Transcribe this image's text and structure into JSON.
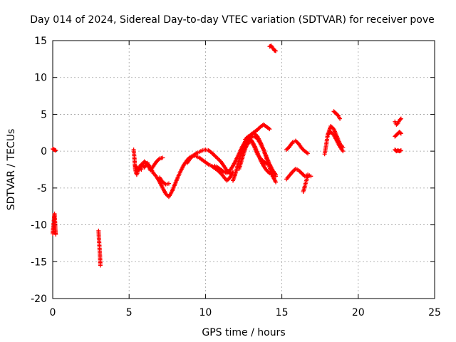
{
  "chart_data": {
    "type": "scatter",
    "title": "Day 014 of 2024, Sidereal Day-to-day VTEC variation (SDTVAR) for receiver pove",
    "xlabel": "GPS time / hours",
    "ylabel": "SDTVAR / TECUs",
    "xlim": [
      0,
      25
    ],
    "ylim": [
      -20,
      15
    ],
    "xticks": [
      0,
      5,
      10,
      15,
      20,
      25
    ],
    "yticks": [
      15,
      10,
      5,
      0,
      -5,
      -10,
      -15,
      -20
    ],
    "grid": true,
    "marker": "+",
    "color": "#ff0000",
    "series": [
      {
        "name": "SDTVAR",
        "segments": [
          {
            "x": [
              0.0,
              0.1,
              0.2
            ],
            "y": [
              0.3,
              0.2,
              0.1
            ]
          },
          {
            "x": [
              0.0,
              0.03,
              0.06,
              0.09,
              0.12,
              0.15,
              0.18,
              0.2
            ],
            "y": [
              -11.2,
              -10.5,
              -9.8,
              -9.0,
              -8.5,
              -9.5,
              -10.8,
              -11.3
            ]
          },
          {
            "x": [
              3.0,
              3.03,
              3.06,
              3.09,
              3.12
            ],
            "y": [
              -10.8,
              -12.0,
              -13.0,
              -14.0,
              -15.5
            ]
          },
          {
            "x": [
              5.3,
              5.35,
              5.4,
              5.5,
              5.6,
              5.7,
              5.8
            ],
            "y": [
              0.2,
              -1.0,
              -2.5,
              -3.2,
              -2.6,
              -2.2,
              -2.5
            ]
          },
          {
            "x": [
              5.4,
              5.6,
              5.8,
              6.0,
              6.2,
              6.4,
              6.6,
              6.8,
              7.0,
              7.2,
              7.4,
              7.6,
              7.8,
              8.0,
              8.2,
              8.4,
              8.6,
              8.8,
              9.0,
              9.2,
              9.4,
              9.6,
              9.8,
              10.0,
              10.2,
              10.4,
              10.6,
              10.8,
              11.0,
              11.2,
              11.4,
              11.6,
              11.8
            ],
            "y": [
              -2.0,
              -2.4,
              -1.8,
              -2.2,
              -1.6,
              -2.3,
              -3.0,
              -3.5,
              -4.2,
              -5.0,
              -5.8,
              -6.2,
              -5.5,
              -4.5,
              -3.5,
              -2.6,
              -1.8,
              -1.2,
              -0.8,
              -0.6,
              -0.7,
              -0.9,
              -1.2,
              -1.5,
              -1.8,
              -2.0,
              -2.3,
              -2.6,
              -3.0,
              -3.5,
              -4.0,
              -3.6,
              -2.8
            ]
          },
          {
            "x": [
              5.6,
              5.8,
              6.0,
              6.2,
              6.4,
              6.6,
              6.8,
              7.0,
              7.2
            ],
            "y": [
              -2.6,
              -2.0,
              -1.4,
              -1.8,
              -2.6,
              -2.0,
              -1.4,
              -1.0,
              -0.9
            ]
          },
          {
            "x": [
              7.0,
              7.2,
              7.4,
              7.6
            ],
            "y": [
              -3.6,
              -4.2,
              -4.5,
              -4.4
            ]
          },
          {
            "x": [
              8.8,
              9.0,
              9.2,
              9.4,
              9.6,
              9.8,
              10.0,
              10.2,
              10.4,
              10.6,
              10.8,
              11.0,
              11.2,
              11.4,
              11.6
            ],
            "y": [
              -1.6,
              -1.0,
              -0.6,
              -0.3,
              -0.1,
              0.1,
              0.2,
              0.1,
              -0.2,
              -0.6,
              -1.0,
              -1.4,
              -2.0,
              -2.6,
              -3.0
            ]
          },
          {
            "x": [
              10.6,
              10.8,
              11.0,
              11.2,
              11.4,
              11.6,
              11.8,
              12.0,
              12.2,
              12.4,
              12.6,
              12.8,
              13.0,
              13.2,
              13.4,
              13.6,
              13.8,
              14.0,
              14.2
            ],
            "y": [
              -2.0,
              -2.2,
              -2.5,
              -2.8,
              -3.0,
              -2.6,
              -2.0,
              -1.2,
              -0.3,
              0.6,
              1.3,
              1.9,
              2.3,
              2.6,
              2.9,
              3.3,
              3.6,
              3.3,
              3.0
            ]
          },
          {
            "x": [
              11.8,
              12.0,
              12.2,
              12.4,
              12.6,
              12.8,
              13.0,
              13.2,
              13.4,
              13.6,
              13.8,
              14.0,
              14.2,
              14.4,
              14.6
            ],
            "y": [
              -4.0,
              -2.8,
              -1.2,
              0.2,
              1.2,
              1.8,
              1.5,
              0.8,
              -0.2,
              -1.2,
              -2.0,
              -2.6,
              -3.0,
              -3.2,
              -3.4
            ]
          },
          {
            "x": [
              12.2,
              12.4,
              12.6,
              12.8,
              13.0,
              13.2,
              13.4,
              13.6,
              13.8,
              14.0,
              14.2,
              14.4,
              14.6
            ],
            "y": [
              -2.4,
              -1.0,
              0.3,
              1.3,
              2.0,
              2.0,
              1.7,
              1.0,
              0.2,
              -0.8,
              -1.8,
              -2.6,
              -3.2
            ]
          },
          {
            "x": [
              12.8,
              13.0,
              13.2,
              13.4,
              13.6,
              13.8,
              14.0,
              14.2,
              14.4,
              14.6
            ],
            "y": [
              1.0,
              2.2,
              2.4,
              2.0,
              1.2,
              0.2,
              -1.0,
              -2.2,
              -3.4,
              -4.2
            ]
          },
          {
            "x": [
              12.6,
              12.8,
              13.0,
              13.2,
              13.4,
              13.6,
              13.8,
              14.0,
              14.2
            ],
            "y": [
              1.6,
              2.0,
              1.4,
              0.6,
              -0.4,
              -1.0,
              -1.4,
              -1.7,
              -1.9
            ]
          },
          {
            "x": [
              14.2,
              14.3,
              14.4,
              14.5,
              14.6
            ],
            "y": [
              14.2,
              14.3,
              14.0,
              13.7,
              13.6
            ]
          },
          {
            "x": [
              15.3,
              15.5,
              15.7,
              15.9,
              16.1,
              16.3,
              16.5,
              16.7
            ],
            "y": [
              0.2,
              0.6,
              1.2,
              1.4,
              1.0,
              0.4,
              0.0,
              -0.3
            ]
          },
          {
            "x": [
              15.3,
              15.5,
              15.7,
              15.9,
              16.1,
              16.3,
              16.5,
              16.7,
              16.9
            ],
            "y": [
              -3.8,
              -3.3,
              -2.8,
              -2.4,
              -2.6,
              -3.0,
              -3.4,
              -3.2,
              -3.4
            ]
          },
          {
            "x": [
              16.4,
              16.5,
              16.6,
              16.7
            ],
            "y": [
              -5.5,
              -4.8,
              -4.0,
              -3.4
            ]
          },
          {
            "x": [
              17.8,
              17.9,
              18.0,
              18.2,
              18.4,
              18.6,
              18.8,
              19.0
            ],
            "y": [
              -0.4,
              0.8,
              2.2,
              3.4,
              3.0,
              2.0,
              1.0,
              0.5
            ]
          },
          {
            "x": [
              18.0,
              18.2,
              18.4,
              18.6,
              18.8,
              19.0
            ],
            "y": [
              2.2,
              2.6,
              2.2,
              1.4,
              0.6,
              0.0
            ]
          },
          {
            "x": [
              18.4,
              18.5,
              18.6,
              18.7,
              18.8
            ],
            "y": [
              5.4,
              5.2,
              5.0,
              4.8,
              4.4
            ]
          },
          {
            "x": [
              22.4,
              22.5,
              22.6,
              22.7,
              22.8
            ],
            "y": [
              4.0,
              3.6,
              3.8,
              4.2,
              4.4
            ]
          },
          {
            "x": [
              22.4,
              22.5,
              22.6,
              22.7,
              22.8
            ],
            "y": [
              2.0,
              2.2,
              2.4,
              2.6,
              2.4
            ]
          },
          {
            "x": [
              22.4,
              22.5,
              22.6,
              22.7,
              22.8
            ],
            "y": [
              0.2,
              0.0,
              0.1,
              0.0,
              0.1
            ]
          }
        ]
      }
    ]
  }
}
